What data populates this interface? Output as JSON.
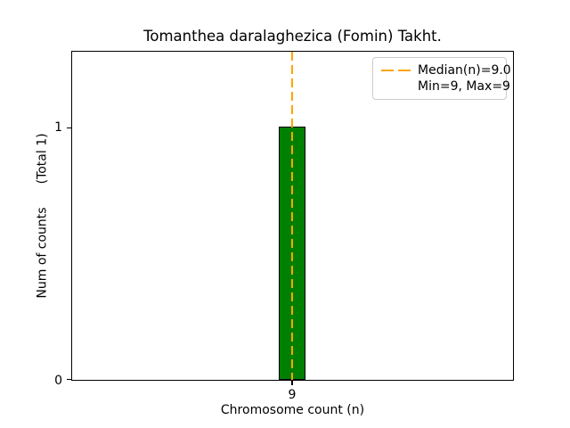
{
  "chart_data": {
    "type": "bar",
    "title": "Tomanthea daralaghezica (Fomin) Takht.",
    "xlabel": "Chromosome count (n)",
    "ylabel": "Num of counts",
    "ylabel_note": "(Total 1)",
    "categories": [
      "9"
    ],
    "values": [
      1
    ],
    "total_counts": 1,
    "xticks": [
      "9"
    ],
    "yticks": [
      "0",
      "1"
    ],
    "ylim": [
      0,
      1.3
    ],
    "grid": false,
    "bar_color": "#008000",
    "bar_edge_color": "#000000",
    "median_line": {
      "value": 9.0,
      "orientation": "vertical",
      "style": "dashed",
      "color": "#FFA500"
    },
    "stats": {
      "median": 9.0,
      "min": 9,
      "max": 9
    },
    "legend": {
      "position": "upper right",
      "entries": [
        {
          "label": "Median(n)=9.0",
          "has_line_sample": true
        },
        {
          "label": "Min=9, Max=9",
          "has_line_sample": false
        }
      ]
    }
  }
}
